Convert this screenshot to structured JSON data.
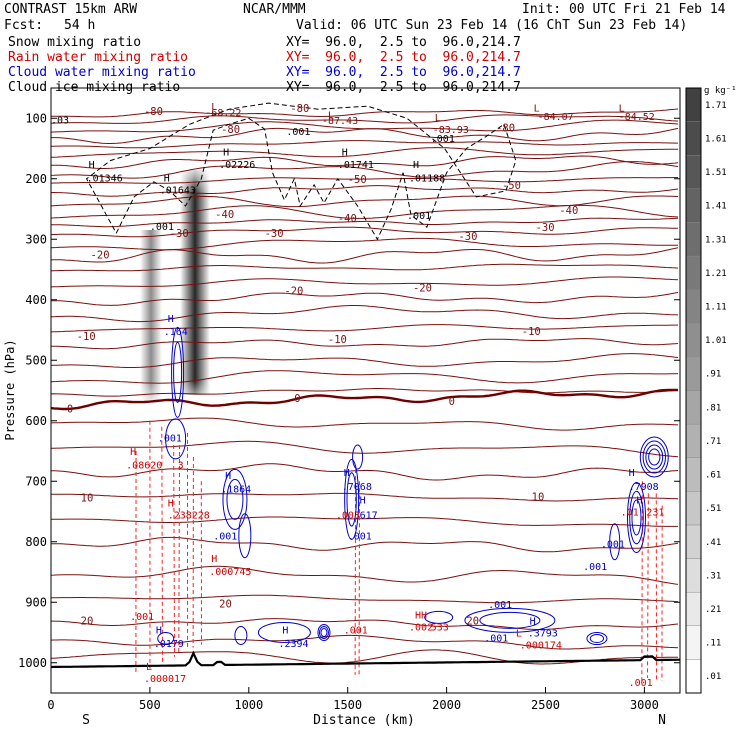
{
  "header": {
    "model": "CONTRAST 15km ARW",
    "center": "NCAR/MMM",
    "init": "Init: 00 UTC Fri 21 Feb 14",
    "fcst_label": "Fcst:",
    "fcst_value": "54 h",
    "valid": "Valid: 06 UTC Sun 23 Feb 14 (16 ChT Sun 23 Feb 14)"
  },
  "fields": [
    {
      "name": "Snow mixing ratio",
      "xy": "XY=  96.0,  2.5 to  96.0,214.7",
      "color": "#000000"
    },
    {
      "name": "Rain water mixing ratio",
      "xy": "XY=  96.0,  2.5 to  96.0,214.7",
      "color": "#d00000"
    },
    {
      "name": "Cloud water mixing ratio",
      "xy": "XY=  96.0,  2.5 to  96.0,214.7",
      "color": "#0000cc"
    },
    {
      "name": "Cloud ice mixing ratio",
      "xy": "XY=  96.0,  2.5 to  96.0,214.7",
      "color": "#000000"
    }
  ],
  "colors": {
    "isotherm": "#7a1010",
    "zero_isotherm": "#6e0000",
    "rain": "#ff2020",
    "cloud_water": "#0000cc",
    "cloud_ice": "#000000",
    "terrain": "#000000"
  },
  "chart_data": {
    "type": "cross-section",
    "xlabel": "Distance (km)",
    "ylabel": "Pressure (hPa)",
    "xlim": [
      0,
      3180
    ],
    "ylim": [
      1050,
      50
    ],
    "x_ticks": [
      "0",
      "500",
      "1000",
      "1500",
      "2000",
      "2500",
      "3000"
    ],
    "y_ticks": [
      "100",
      "200",
      "300",
      "400",
      "500",
      "600",
      "700",
      "800",
      "900",
      "1000"
    ],
    "endpoints": {
      "left": "S",
      "right": "N"
    },
    "colorbar": {
      "unit": "g kg⁻¹",
      "ticks": [
        ".01",
        ".11",
        ".21",
        ".31",
        ".41",
        ".51",
        ".61",
        ".71",
        ".81",
        ".91",
        "1.01",
        "1.11",
        "1.21",
        "1.31",
        "1.41",
        "1.51",
        "1.61",
        "1.71"
      ]
    },
    "isotherm_labels": [
      {
        "text": "-80",
        "x": 470,
        "p": 88
      },
      {
        "text": "-80",
        "x": 1210,
        "p": 83
      },
      {
        "text": "-80",
        "x": 2250,
        "p": 115
      },
      {
        "text": "-80",
        "x": 860,
        "p": 118
      },
      {
        "text": "-50",
        "x": 1500,
        "p": 200
      },
      {
        "text": "-50",
        "x": 2280,
        "p": 210
      },
      {
        "text": "-40",
        "x": 830,
        "p": 258
      },
      {
        "text": "-40",
        "x": 1450,
        "p": 265
      },
      {
        "text": "-40",
        "x": 2570,
        "p": 252
      },
      {
        "text": "-30",
        "x": 600,
        "p": 290
      },
      {
        "text": "-30",
        "x": 1080,
        "p": 290
      },
      {
        "text": "-30",
        "x": 2060,
        "p": 295
      },
      {
        "text": "-30",
        "x": 2450,
        "p": 280
      },
      {
        "text": "-20",
        "x": 200,
        "p": 325
      },
      {
        "text": "-20",
        "x": 1180,
        "p": 385
      },
      {
        "text": "-20",
        "x": 1830,
        "p": 380
      },
      {
        "text": "-10",
        "x": 130,
        "p": 460
      },
      {
        "text": "-10",
        "x": 1400,
        "p": 465
      },
      {
        "text": "-10",
        "x": 2380,
        "p": 452
      },
      {
        "text": "0",
        "x": 80,
        "p": 580
      },
      {
        "text": "0",
        "x": 1230,
        "p": 562
      },
      {
        "text": "0",
        "x": 2010,
        "p": 567
      },
      {
        "text": "10",
        "x": 150,
        "p": 727
      },
      {
        "text": "10",
        "x": 2430,
        "p": 725
      },
      {
        "text": "20",
        "x": 150,
        "p": 930
      },
      {
        "text": "20",
        "x": 850,
        "p": 902
      },
      {
        "text": "20",
        "x": 2100,
        "p": 930
      }
    ],
    "annotations": [
      {
        "text": ".03",
        "x": 0,
        "p": 102,
        "color": "#000000"
      },
      {
        "text": "L",
        "x": 810,
        "p": 80,
        "color": "#7a1010"
      },
      {
        "text": "-68.22",
        "x": 780,
        "p": 90,
        "color": "#7a1010"
      },
      {
        "text": "L",
        "x": 1400,
        "p": 94,
        "color": "#7a1010"
      },
      {
        "text": "-87.43",
        "x": 1370,
        "p": 103,
        "color": "#7a1010"
      },
      {
        "text": "L",
        "x": 1940,
        "p": 98,
        "color": "#7a1010"
      },
      {
        "text": "-83.93",
        "x": 1930,
        "p": 118,
        "color": "#7a1010"
      },
      {
        "text": "L",
        "x": 2440,
        "p": 82,
        "color": "#7a1010"
      },
      {
        "text": "-84.07",
        "x": 2460,
        "p": 96,
        "color": "#7a1010"
      },
      {
        "text": "L",
        "x": 2870,
        "p": 82,
        "color": "#7a1010"
      },
      {
        "text": "-84.52",
        "x": 2870,
        "p": 96,
        "color": "#7a1010"
      },
      {
        "text": ".001",
        "x": 1190,
        "p": 121,
        "color": "#000000"
      },
      {
        "text": ".001",
        "x": 1920,
        "p": 133,
        "color": "#000000"
      },
      {
        "text": "H",
        "x": 870,
        "p": 155,
        "color": "#000000"
      },
      {
        "text": ".02226",
        "x": 850,
        "p": 176,
        "color": "#000000"
      },
      {
        "text": "H",
        "x": 1470,
        "p": 155,
        "color": "#000000"
      },
      {
        "text": ".01741",
        "x": 1450,
        "p": 176,
        "color": "#000000"
      },
      {
        "text": "H",
        "x": 190,
        "p": 176,
        "color": "#000000"
      },
      {
        "text": ".01346",
        "x": 180,
        "p": 198,
        "color": "#000000"
      },
      {
        "text": "H",
        "x": 570,
        "p": 198,
        "color": "#000000"
      },
      {
        "text": ".01643",
        "x": 550,
        "p": 218,
        "color": "#000000"
      },
      {
        "text": "H",
        "x": 1830,
        "p": 176,
        "color": "#000000"
      },
      {
        "text": ".01188",
        "x": 1810,
        "p": 198,
        "color": "#000000"
      },
      {
        "text": ".001",
        "x": 1800,
        "p": 260,
        "color": "#000000"
      },
      {
        "text": ".001",
        "x": 500,
        "p": 278,
        "color": "#000000"
      },
      {
        "text": "H",
        "x": 590,
        "p": 430,
        "color": "#0000cc"
      },
      {
        "text": ".164",
        "x": 570,
        "p": 452,
        "color": "#0000cc"
      },
      {
        "text": ".001",
        "x": 540,
        "p": 628,
        "color": "#0000cc"
      },
      {
        "text": "H",
        "x": 400,
        "p": 650,
        "color": "#d00000"
      },
      {
        "text": ".08620",
        "x": 380,
        "p": 672,
        "color": "#d00000"
      },
      {
        "text": "3",
        "x": 640,
        "p": 672,
        "color": "#d00000"
      },
      {
        "text": "H",
        "x": 880,
        "p": 690,
        "color": "#0000cc"
      },
      {
        "text": ".1864",
        "x": 860,
        "p": 712,
        "color": "#0000cc"
      },
      {
        "text": "H",
        "x": 590,
        "p": 735,
        "color": "#d00000"
      },
      {
        "text": ".238228",
        "x": 590,
        "p": 755,
        "color": "#d00000"
      },
      {
        "text": ".001",
        "x": 820,
        "p": 790,
        "color": "#0000cc"
      },
      {
        "text": "H",
        "x": 810,
        "p": 827,
        "color": "#d00000"
      },
      {
        "text": ".000745",
        "x": 800,
        "p": 848,
        "color": "#d00000"
      },
      {
        "text": "H",
        "x": 1480,
        "p": 685,
        "color": "#0000cc"
      },
      {
        "text": ".7068",
        "x": 1470,
        "p": 708,
        "color": "#0000cc"
      },
      {
        "text": "H",
        "x": 1560,
        "p": 730,
        "color": "#0000cc"
      },
      {
        "text": ".003",
        "x": 1440,
        "p": 755,
        "color": "#d00000"
      },
      {
        "text": "617",
        "x": 1560,
        "p": 755,
        "color": "#0000cc"
      },
      {
        "text": ".001",
        "x": 1500,
        "p": 790,
        "color": "#0000cc"
      },
      {
        "text": "H",
        "x": 2920,
        "p": 685,
        "color": "#0000cc"
      },
      {
        "text": ".7908",
        "x": 2920,
        "p": 708,
        "color": "#0000cc"
      },
      {
        "text": "H",
        "x": 2960,
        "p": 730,
        "color": "#0000cc"
      },
      {
        "text": ".01",
        "x": 2880,
        "p": 750,
        "color": "#d00000"
      },
      {
        "text": "231",
        "x": 3010,
        "p": 750,
        "color": "#d00000"
      },
      {
        "text": ".001",
        "x": 2780,
        "p": 803,
        "color": "#0000cc"
      },
      {
        "text": ".001",
        "x": 2690,
        "p": 840,
        "color": "#0000cc"
      },
      {
        "text": ".001",
        "x": 400,
        "p": 923,
        "color": "#d00000"
      },
      {
        "text": "H",
        "x": 530,
        "p": 945,
        "color": "#0000cc"
      },
      {
        "text": ".0179",
        "x": 520,
        "p": 967,
        "color": "#0000cc"
      },
      {
        "text": "H",
        "x": 1170,
        "p": 945,
        "color": "#0000cc"
      },
      {
        "text": ".2394",
        "x": 1150,
        "p": 967,
        "color": "#0000cc"
      },
      {
        "text": ".001",
        "x": 1480,
        "p": 945,
        "color": "#d00000"
      },
      {
        "text": "HH",
        "x": 1840,
        "p": 920,
        "color": "#d00000"
      },
      {
        "text": ".002",
        "x": 1810,
        "p": 940,
        "color": "#d00000"
      },
      {
        "text": "533",
        "x": 1920,
        "p": 940,
        "color": "#d00000"
      },
      {
        "text": ".001",
        "x": 2210,
        "p": 903,
        "color": "#0000cc"
      },
      {
        "text": "H",
        "x": 2420,
        "p": 930,
        "color": "#0000cc"
      },
      {
        "text": ".3793",
        "x": 2410,
        "p": 950,
        "color": "#0000cc"
      },
      {
        "text": ".001",
        "x": 2190,
        "p": 958,
        "color": "#0000cc"
      },
      {
        "text": "L",
        "x": 2350,
        "p": 950,
        "color": "#d00000"
      },
      {
        "text": ".000174",
        "x": 2370,
        "p": 970,
        "color": "#d00000"
      },
      {
        "text": "L",
        "x": 480,
        "p": 1005,
        "color": "#d00000"
      },
      {
        "text": ".000017",
        "x": 470,
        "p": 1025,
        "color": "#d00000"
      },
      {
        "text": ".001",
        "x": 2920,
        "p": 1032,
        "color": "#d00000"
      }
    ]
  }
}
